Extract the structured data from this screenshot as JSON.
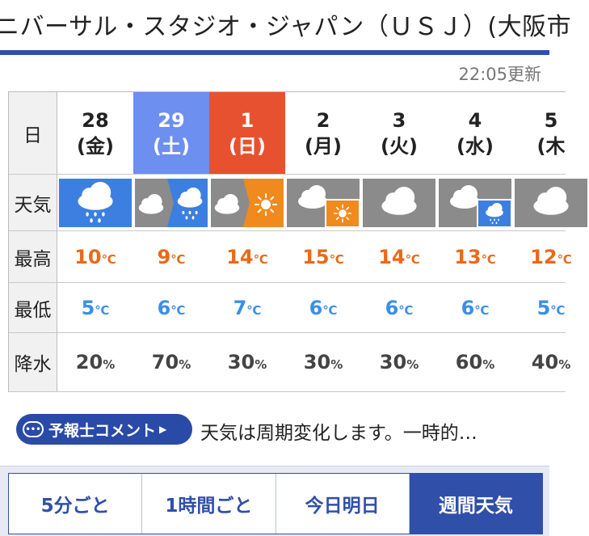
{
  "header": {
    "title": "ニバーサル・スタジオ・ジャパン（ＵＳＪ）(大阪市"
  },
  "updated": "22:05更新",
  "table": {
    "row_labels": {
      "day": "日",
      "weather": "天気",
      "high": "最高",
      "low": "最低",
      "rain": "降水"
    },
    "temp_unit": "℃",
    "pct_unit": "%",
    "days": [
      {
        "num": "28",
        "dow": "(金)",
        "type": "weekday",
        "weather": "雨",
        "high": "10",
        "low": "5",
        "rain": "20"
      },
      {
        "num": "29",
        "dow": "(土)",
        "type": "sat",
        "weather": "曇のち雨",
        "high": "9",
        "low": "6",
        "rain": "70"
      },
      {
        "num": "1",
        "dow": "(日)",
        "type": "sun",
        "weather": "曇のち晴",
        "high": "14",
        "low": "7",
        "rain": "30"
      },
      {
        "num": "2",
        "dow": "(月)",
        "type": "weekday",
        "weather": "曇時々晴",
        "high": "15",
        "low": "6",
        "rain": "30"
      },
      {
        "num": "3",
        "dow": "(火)",
        "type": "weekday",
        "weather": "曇",
        "high": "14",
        "low": "6",
        "rain": "30"
      },
      {
        "num": "4",
        "dow": "(水)",
        "type": "weekday",
        "weather": "曇時々雨",
        "high": "13",
        "low": "6",
        "rain": "60"
      },
      {
        "num": "5",
        "dow": "(木",
        "type": "weekday",
        "weather": "曇",
        "high": "12",
        "low": "5",
        "rain": "40"
      }
    ]
  },
  "comment": {
    "button_label": "予報士コメント",
    "bubble": "•••",
    "arrow": "▶",
    "text": "天気は周期変化します。一時的…"
  },
  "tabs": [
    {
      "label": "5分ごと",
      "active": false
    },
    {
      "label": "1時間ごと",
      "active": false
    },
    {
      "label": "今日明日",
      "active": false
    },
    {
      "label": "週間天気",
      "active": true
    }
  ],
  "colors": {
    "accent": "#2f4fa8",
    "saturday": "#6d8ff0",
    "sunday": "#e8512f",
    "high": "#e86a1a",
    "low": "#3c8fe6",
    "rain_icon": "#3d7fe0",
    "sun_icon": "#f08a1e"
  }
}
